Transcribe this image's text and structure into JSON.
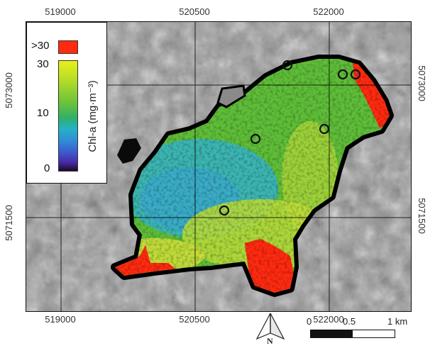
{
  "map": {
    "x_ticks_top": [
      "519000",
      "520500",
      "522000"
    ],
    "x_ticks_bottom": [
      "519000",
      "520500",
      "522000"
    ],
    "y_ticks_left": [
      "5073000",
      "5071500"
    ],
    "y_ticks_right": [
      "5073000",
      "5071500"
    ]
  },
  "legend": {
    "label_over": ">30",
    "label_30": "30",
    "label_10": "10",
    "label_0": "0",
    "title": "Chl-a (mg·m⁻³)",
    "over_color": "#ff2a10"
  },
  "scale": {
    "label_0": "0",
    "label_mid": "0.5",
    "label_end": "1 km"
  },
  "north": {
    "label": "N"
  },
  "stations": {
    "count": 6
  },
  "colors": {
    "green": "#5fbe38",
    "cyan": "#35b4c8",
    "yellow": "#d7e436",
    "red": "#ff2a10",
    "shore": "#000000"
  }
}
